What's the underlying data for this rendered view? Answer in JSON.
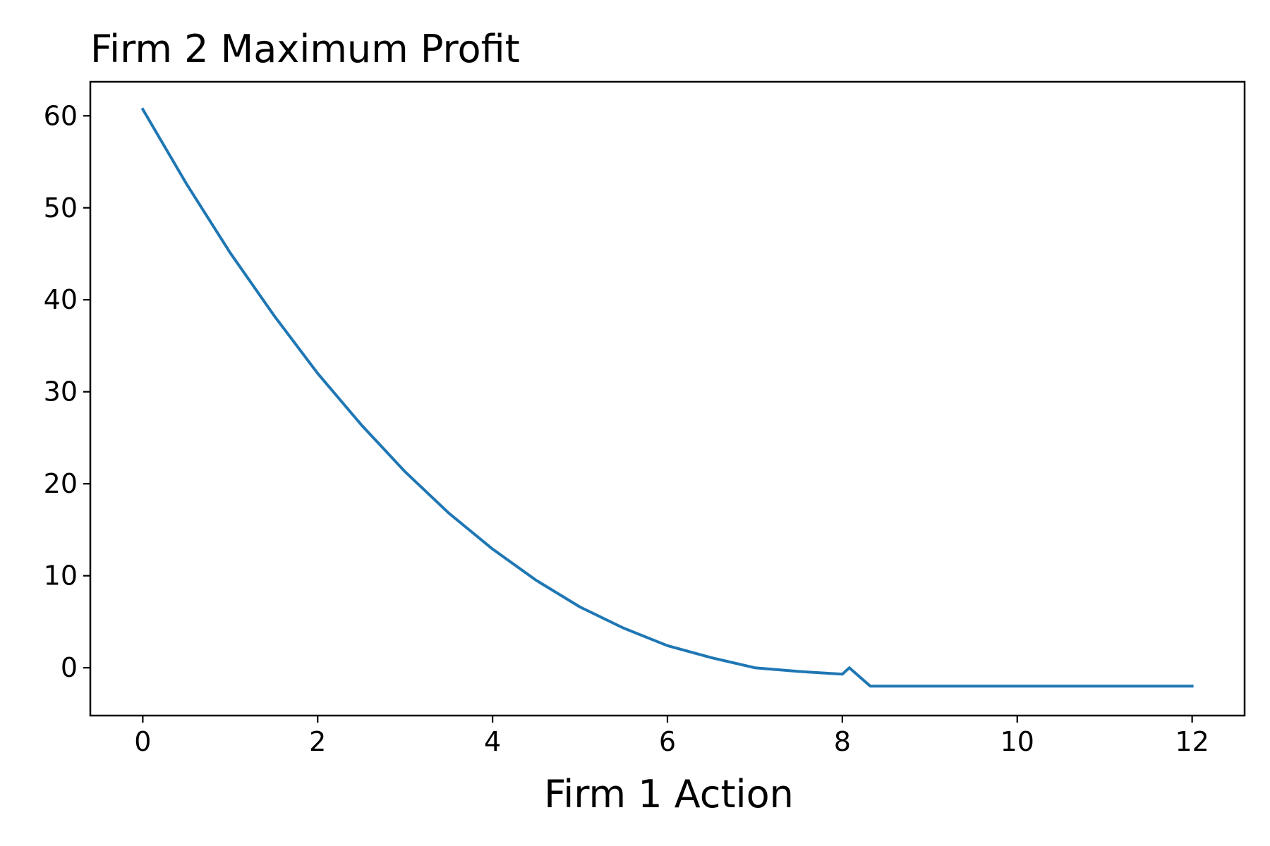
{
  "chart_data": {
    "type": "line",
    "title": "Firm 2 Maximum Profit",
    "xlabel": "Firm 1 Action",
    "ylabel": "",
    "xlim": [
      -0.6,
      12.6
    ],
    "ylim": [
      -5.2,
      63.7
    ],
    "xticks": [
      0,
      2,
      4,
      6,
      8,
      10,
      12
    ],
    "xtick_labels": [
      "0",
      "2",
      "4",
      "6",
      "8",
      "10",
      "12"
    ],
    "yticks": [
      0,
      10,
      20,
      30,
      40,
      50,
      60
    ],
    "ytick_labels": [
      "0",
      "10",
      "20",
      "30",
      "40",
      "50",
      "60"
    ],
    "grid": false,
    "legend": "none",
    "series": [
      {
        "color": "#1f77b4",
        "x": [
          0,
          0.5,
          1,
          1.5,
          2,
          2.5,
          3,
          3.5,
          4,
          4.5,
          5,
          5.5,
          6,
          6.5,
          7,
          7.5,
          8,
          8.08,
          8.32,
          9,
          10,
          11,
          12
        ],
        "y": [
          60.7,
          52.6,
          45.1,
          38.3,
          32.0,
          26.4,
          21.3,
          16.8,
          12.9,
          9.5,
          6.6,
          4.3,
          2.4,
          1.1,
          0.0,
          -0.4,
          -0.7,
          0.0,
          -2.0,
          -2.0,
          -2.0,
          -2.0,
          -2.0
        ]
      }
    ]
  }
}
